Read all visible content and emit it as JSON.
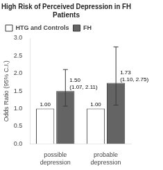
{
  "chart_data": {
    "type": "bar",
    "title": "High Risk of Perceived Depression in FH Patients",
    "ylabel": "Odds Ratio (95% C.I.)",
    "categories": [
      "possible depression",
      "probable depression"
    ],
    "series": [
      {
        "name": "HTG and Controls",
        "color": "white",
        "values": [
          1.0,
          1.0
        ],
        "value_labels": [
          "1.00",
          "1.00"
        ]
      },
      {
        "name": "FH",
        "color": "#646464",
        "values": [
          1.5,
          1.73
        ],
        "value_labels": [
          "1.50",
          "1.73"
        ],
        "interval_labels": [
          "(1.07, 2.11)",
          "(1.10, 2.75)"
        ],
        "error_low": [
          0.43,
          0.63
        ],
        "error_high": [
          0.61,
          1.02
        ]
      }
    ],
    "ylim": [
      0.0,
      3.0
    ],
    "yticks": [
      {
        "value": 0.0,
        "label": "0.0"
      },
      {
        "value": 0.5,
        "label": "0.5"
      },
      {
        "value": 1.0,
        "label": "1.0"
      },
      {
        "value": 1.5,
        "label": "1.5"
      },
      {
        "value": 2.0,
        "label": "2.0"
      },
      {
        "value": 2.5,
        "label": "2.5"
      },
      {
        "value": 3.0,
        "label": "3.0"
      }
    ],
    "grid": false,
    "legend": "upper left",
    "data_labels": true
  }
}
